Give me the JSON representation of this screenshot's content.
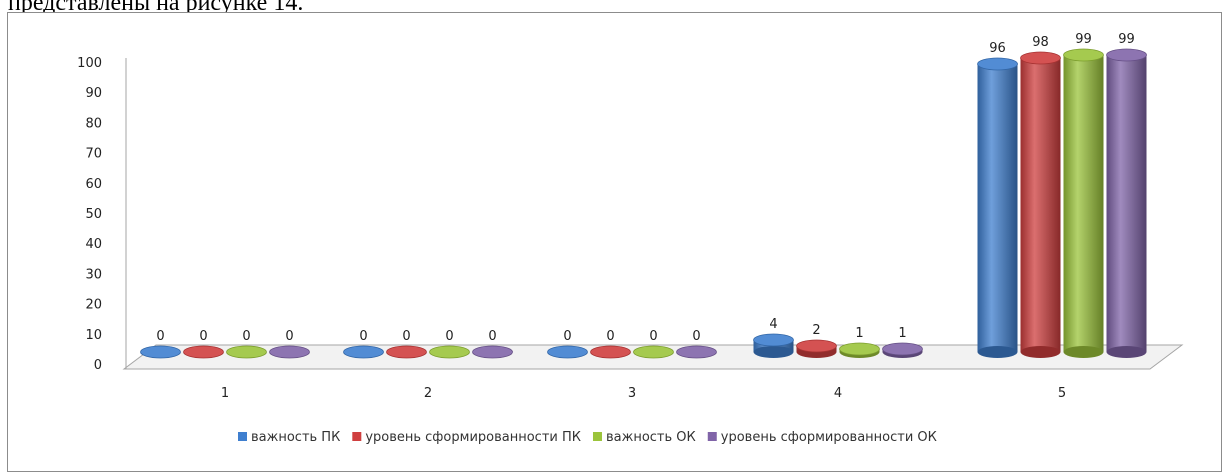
{
  "page": {
    "caption_fragment": "представлены на рисунке 14."
  },
  "chart_data": {
    "type": "bar",
    "title": "",
    "xlabel": "",
    "ylabel": "",
    "categories": [
      "1",
      "2",
      "3",
      "4",
      "5"
    ],
    "yticks": [
      "0",
      "10",
      "20",
      "30",
      "40",
      "50",
      "60",
      "70",
      "80",
      "90",
      "100"
    ],
    "ylim": [
      0,
      100
    ],
    "grid": false,
    "legend_position": "bottom",
    "series": [
      {
        "name": "важность ПК",
        "color": "#3f7fcf",
        "values": [
          0,
          0,
          0,
          4,
          96
        ]
      },
      {
        "name": "уровень сформированности ПК",
        "color": "#cf3f3f",
        "values": [
          0,
          0,
          0,
          2,
          98
        ]
      },
      {
        "name": "важность ОК",
        "color": "#9bc43b",
        "values": [
          0,
          0,
          0,
          1,
          99
        ]
      },
      {
        "name": "уровень сформированности ОК",
        "color": "#8064a8",
        "values": [
          0,
          0,
          0,
          1,
          99
        ]
      }
    ]
  }
}
